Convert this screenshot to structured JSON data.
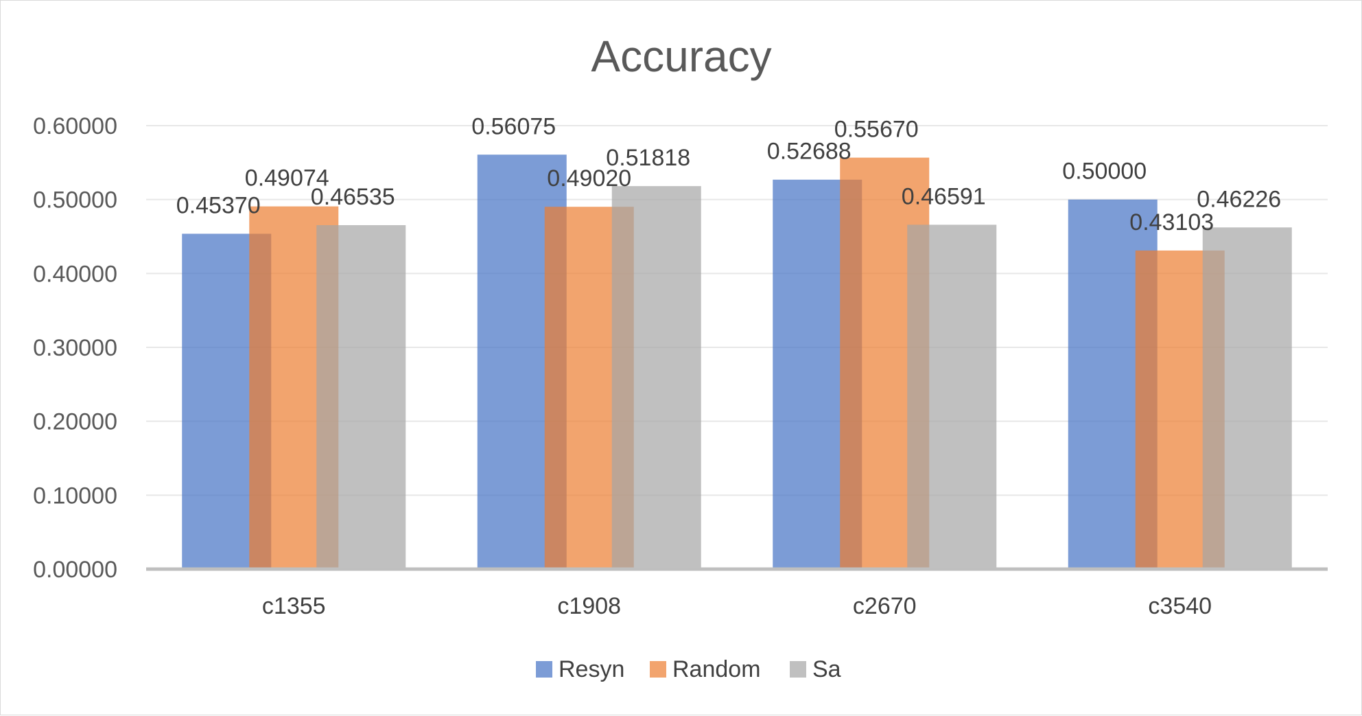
{
  "chart_data": {
    "type": "bar",
    "title": "Accuracy",
    "categories": [
      "c1355",
      "c1908",
      "c2670",
      "c3540"
    ],
    "series": [
      {
        "name": "Resyn",
        "color": "#4472c4",
        "values": [
          0.4537,
          0.56075,
          0.52688,
          0.5
        ],
        "labels": [
          "0.45370",
          "0.56075",
          "0.52688",
          "0.50000"
        ]
      },
      {
        "name": "Random",
        "color": "#ed7d31",
        "values": [
          0.49074,
          0.4902,
          0.5567,
          0.43103
        ],
        "labels": [
          "0.49074",
          "0.49020",
          "0.55670",
          "0.43103"
        ]
      },
      {
        "name": "Sa",
        "color": "#a5a5a5",
        "values": [
          0.46535,
          0.51818,
          0.46591,
          0.46226
        ],
        "labels": [
          "0.46535",
          "0.51818",
          "0.46591",
          "0.46226"
        ]
      }
    ],
    "ylim": [
      0,
      0.6
    ],
    "yticks": [
      "0.00000",
      "0.10000",
      "0.20000",
      "0.30000",
      "0.40000",
      "0.50000",
      "0.60000"
    ],
    "ytick_values": [
      0,
      0.1,
      0.2,
      0.3,
      0.4,
      0.5,
      0.6
    ],
    "grid": true,
    "legend": "bottom-center",
    "xlabel": "",
    "ylabel": ""
  }
}
